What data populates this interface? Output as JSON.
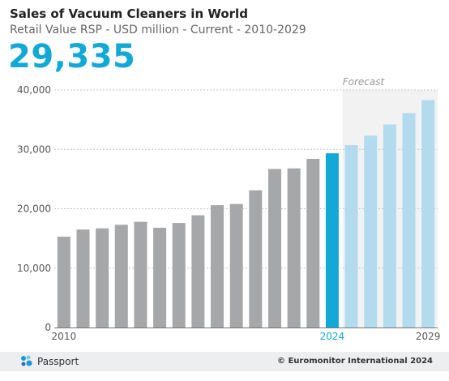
{
  "header": {
    "title": "Sales of Vacuum Cleaners in World",
    "subtitle": "Retail Value RSP - USD million - Current - 2010-2029",
    "highlight_value": "29,335"
  },
  "chart_data": {
    "type": "bar",
    "x": [
      2010,
      2011,
      2012,
      2013,
      2014,
      2015,
      2016,
      2017,
      2018,
      2019,
      2020,
      2021,
      2022,
      2023,
      2024,
      2025,
      2026,
      2027,
      2028,
      2029
    ],
    "values": [
      15300,
      16500,
      16700,
      17300,
      17800,
      16800,
      17600,
      18900,
      20600,
      20800,
      23100,
      26700,
      26800,
      28400,
      29335,
      30700,
      32300,
      34200,
      36100,
      38300
    ],
    "ylim": [
      0,
      40000
    ],
    "yticks": [
      0,
      10000,
      20000,
      30000,
      40000
    ],
    "ytick_labels": [
      "0",
      "10,000",
      "20,000",
      "30,000",
      "40,000"
    ],
    "xtick_labels": [
      "2010",
      "2024",
      "2029"
    ],
    "current_year": 2024,
    "forecast_from": 2025,
    "forecast_label": "Forecast",
    "grid": true,
    "colors": {
      "historic": "#a6a7a9",
      "current": "#12a9d6",
      "forecast": "#b3dbee",
      "forecast_band": "#f2f2f3"
    }
  },
  "footer": {
    "brand": "Passport",
    "copyright": "© Euromonitor International 2024"
  }
}
